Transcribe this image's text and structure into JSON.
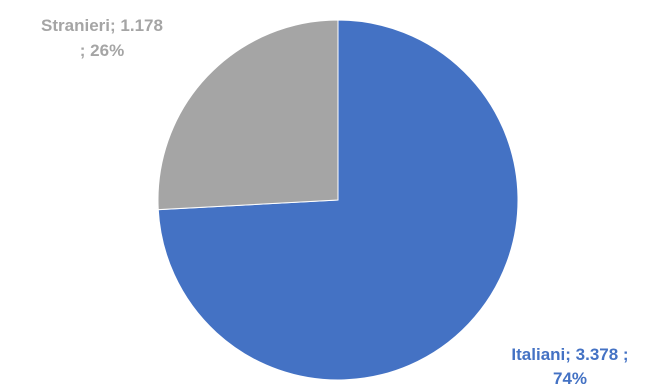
{
  "chart_data": {
    "type": "pie",
    "title": "",
    "series": [
      {
        "values": [
          3378,
          1178
        ],
        "percents": [
          74,
          26
        ]
      }
    ],
    "categories": [
      "Italiani",
      "Stranieri"
    ],
    "slices": [
      {
        "name": "Italiani",
        "value": 3378,
        "percent": 74,
        "color": "#4472C4",
        "label_line1": "Italiani;  3.378 ;",
        "label_line2": "74%"
      },
      {
        "name": "Stranieri",
        "value": 1178,
        "percent": 26,
        "color": "#A5A5A5",
        "label_line1": "Stranieri;  1.178",
        "label_line2": "; 26%"
      }
    ],
    "legend": "none",
    "start_angle": "12 o'clock, clockwise"
  }
}
